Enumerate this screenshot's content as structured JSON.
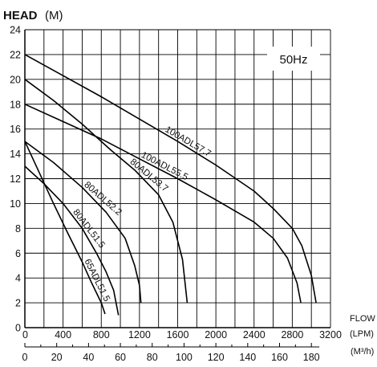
{
  "chart_data": {
    "type": "line",
    "title": "",
    "ylabel": {
      "main": "HEAD",
      "unit": "(M)"
    },
    "xlabel": {
      "main": "FLOW",
      "unit": "(LPM)"
    },
    "x2label": "(M³/h)",
    "badge": "50Hz",
    "ylim": [
      0,
      24
    ],
    "xlim": [
      0,
      3200
    ],
    "y_ticks": [
      0,
      2,
      4,
      6,
      8,
      10,
      12,
      14,
      16,
      18,
      20,
      22,
      24
    ],
    "x_ticks": [
      0,
      400,
      800,
      1200,
      1600,
      2000,
      2400,
      2800,
      3200
    ],
    "x2_ticks": [
      0,
      20,
      40,
      60,
      80,
      100,
      120,
      140,
      160,
      180
    ],
    "grid": true,
    "series": [
      {
        "name": "100ADL57.7",
        "points": [
          [
            0,
            22
          ],
          [
            400,
            20.3
          ],
          [
            800,
            18.6
          ],
          [
            1200,
            16.8
          ],
          [
            1600,
            15.0
          ],
          [
            2000,
            13.1
          ],
          [
            2400,
            11.0
          ],
          [
            2600,
            9.6
          ],
          [
            2800,
            8.0
          ],
          [
            2900,
            6.6
          ],
          [
            3000,
            4.2
          ],
          [
            3050,
            2.0
          ]
        ]
      },
      {
        "name": "100ADL55.5",
        "points": [
          [
            0,
            18
          ],
          [
            400,
            16.6
          ],
          [
            800,
            15.2
          ],
          [
            1200,
            13.6
          ],
          [
            1600,
            12.0
          ],
          [
            2000,
            10.3
          ],
          [
            2400,
            8.5
          ],
          [
            2600,
            7.2
          ],
          [
            2750,
            5.6
          ],
          [
            2850,
            3.6
          ],
          [
            2890,
            2.0
          ]
        ]
      },
      {
        "name": "80ADL53.7",
        "points": [
          [
            0,
            20
          ],
          [
            300,
            18.3
          ],
          [
            600,
            16.4
          ],
          [
            900,
            14.3
          ],
          [
            1150,
            12.7
          ],
          [
            1400,
            10.7
          ],
          [
            1550,
            8.5
          ],
          [
            1650,
            5.5
          ],
          [
            1700,
            2.0
          ]
        ]
      },
      {
        "name": "80ADL52.2",
        "points": [
          [
            0,
            15
          ],
          [
            300,
            13.3
          ],
          [
            600,
            11.3
          ],
          [
            850,
            9.3
          ],
          [
            1050,
            7.2
          ],
          [
            1150,
            5.0
          ],
          [
            1200,
            3.4
          ],
          [
            1215,
            2.0
          ]
        ]
      },
      {
        "name": "80ADL51.5",
        "points": [
          [
            0,
            13
          ],
          [
            200,
            11.6
          ],
          [
            400,
            10.0
          ],
          [
            600,
            8.0
          ],
          [
            750,
            6.0
          ],
          [
            850,
            4.5
          ],
          [
            930,
            3.0
          ],
          [
            980,
            1.0
          ]
        ]
      },
      {
        "name": "65ADL51.5",
        "points": [
          [
            0,
            15
          ],
          [
            150,
            12.5
          ],
          [
            300,
            10.0
          ],
          [
            450,
            7.6
          ],
          [
            600,
            5.3
          ],
          [
            700,
            3.6
          ],
          [
            800,
            2.0
          ],
          [
            840,
            1.1
          ]
        ]
      }
    ]
  }
}
